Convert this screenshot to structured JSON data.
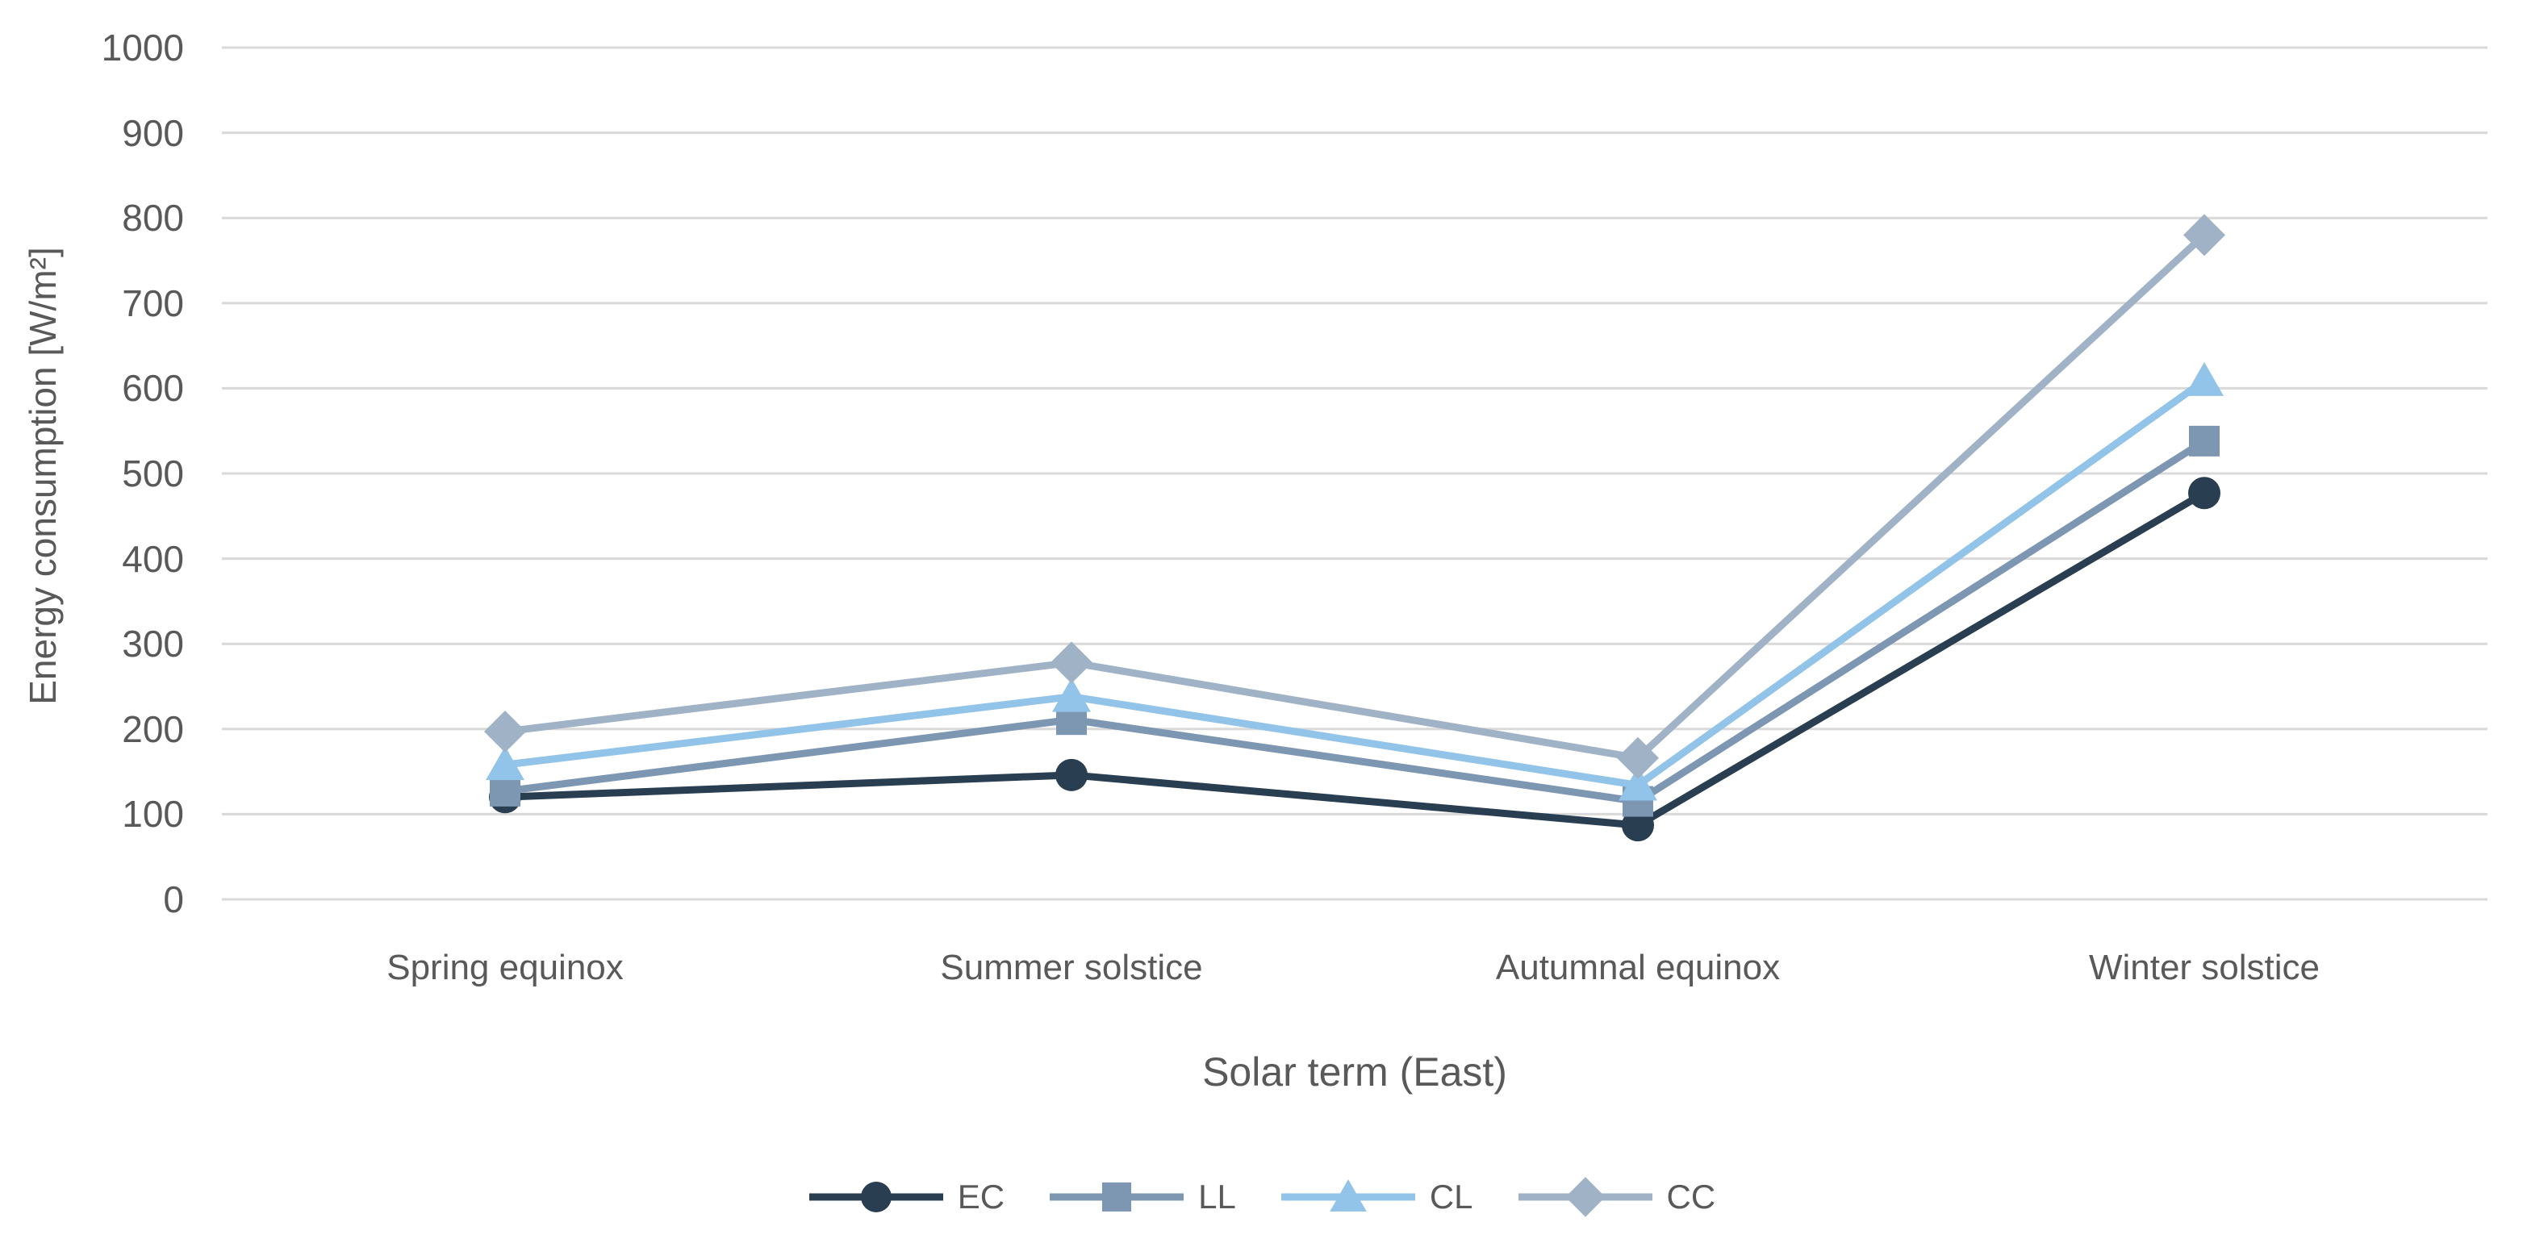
{
  "chart_data": {
    "type": "line",
    "title": "",
    "xlabel": "Solar term (East)",
    "ylabel": "Energy consumption [W/m²]",
    "categories": [
      "Spring equinox",
      "Summer solstice",
      "Autumnal equinox",
      "Winter solstice"
    ],
    "series": [
      {
        "name": "EC",
        "marker": "circle",
        "color": "#2A3E52",
        "values": [
          120,
          146,
          87,
          477
        ]
      },
      {
        "name": "LL",
        "marker": "square",
        "color": "#7D96B2",
        "values": [
          127,
          211,
          115,
          538
        ]
      },
      {
        "name": "CL",
        "marker": "triangle",
        "color": "#92C3E8",
        "values": [
          158,
          238,
          134,
          609
        ]
      },
      {
        "name": "CC",
        "marker": "diamond",
        "color": "#A0B2C6",
        "values": [
          197,
          278,
          166,
          780
        ]
      }
    ],
    "ylim": [
      0,
      1000
    ],
    "y_ticks": [
      0,
      100,
      200,
      300,
      400,
      500,
      600,
      700,
      800,
      900,
      1000
    ],
    "grid": true,
    "gridline_color": "#D9D9D9",
    "text_color": "#595959",
    "legend_position": "bottom",
    "legend_labels": [
      "EC",
      "LL",
      "CL",
      "CC"
    ]
  }
}
